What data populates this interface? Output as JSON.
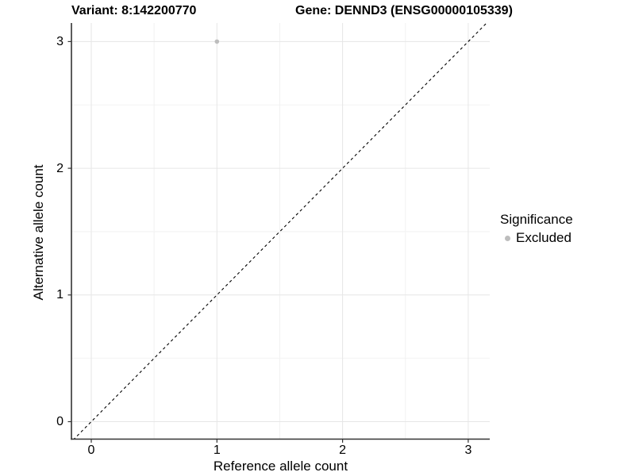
{
  "title": {
    "variant": "Variant: 8:142200770",
    "gene": "Gene: DENND3 (ENSG00000105339)"
  },
  "axes": {
    "x": {
      "label": "Reference allele count"
    },
    "y": {
      "label": "Alternative allele count"
    }
  },
  "legend": {
    "title": "Significance",
    "items": [
      {
        "label": "Excluded",
        "color": "#bdbdbd"
      }
    ]
  },
  "chart_data": {
    "type": "scatter",
    "title": "Variant: 8:142200770    Gene: DENND3 (ENSG00000105339)",
    "xlabel": "Reference allele count",
    "ylabel": "Alternative allele count",
    "xlim": [
      -0.15,
      3.15
    ],
    "ylim": [
      -0.15,
      3.15
    ],
    "x_ticks": [
      0,
      1,
      2,
      3
    ],
    "y_ticks": [
      0,
      1,
      2,
      3
    ],
    "x_minor_ticks": [
      0.5,
      1.5,
      2.5
    ],
    "y_minor_ticks": [
      0.5,
      1.5,
      2.5
    ],
    "grid": true,
    "legend_position": "right",
    "series": [
      {
        "name": "Excluded",
        "color": "#bdbdbd",
        "points": [
          {
            "x": 1,
            "y": 3
          }
        ]
      }
    ],
    "reference_line": {
      "equation": "y = x",
      "style": "dashed",
      "color": "#000000"
    },
    "colors": {
      "grid_major": "#e6e6e6",
      "grid_minor": "#f2f2f2",
      "axis_line": "#333333",
      "tick_mark": "#333333",
      "point": "#bdbdbd",
      "dashed_line": "#000000",
      "background": "#ffffff"
    }
  }
}
